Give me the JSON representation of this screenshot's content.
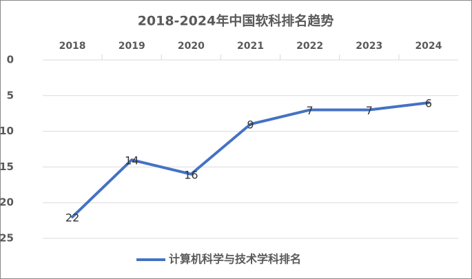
{
  "chart_data": {
    "type": "line",
    "title": "2018-2024年中国软科排名趋势",
    "categories": [
      "2018",
      "2019",
      "2020",
      "2021",
      "2022",
      "2023",
      "2024"
    ],
    "series": [
      {
        "name": "计算机科学与技术学科排名",
        "color": "#4472c4",
        "values": [
          22,
          14,
          16,
          9,
          7,
          7,
          6
        ]
      }
    ],
    "ylim": [
      0,
      25
    ],
    "yticks": [
      0,
      5,
      10,
      15,
      20,
      25
    ],
    "y_inverted": true,
    "grid": true,
    "data_labels": true,
    "legend": "bottom"
  }
}
